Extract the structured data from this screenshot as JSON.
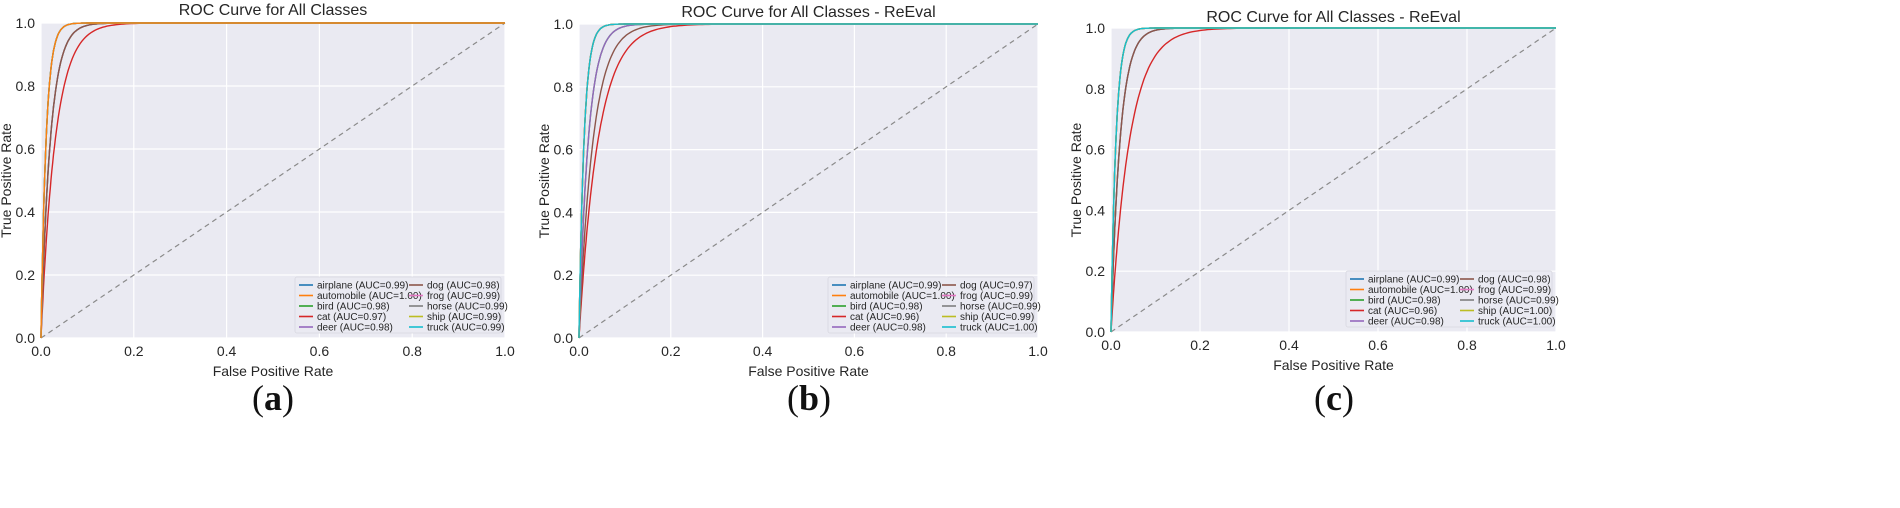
{
  "chart_data": [
    {
      "type": "line",
      "title": "ROC Curve for All Classes",
      "caption_prefix": "(",
      "caption_letter": "a",
      "caption_suffix": ")",
      "xlabel": "False Positive Rate",
      "ylabel": "True Positive Rate",
      "xlim": [
        0,
        1
      ],
      "ylim": [
        0,
        1
      ],
      "xticks": [
        "0.0",
        "0.2",
        "0.4",
        "0.6",
        "0.8",
        "1.0"
      ],
      "yticks": [
        "0.0",
        "0.2",
        "0.4",
        "0.6",
        "0.8",
        "1.0"
      ],
      "grid": true,
      "legend_position": "lower-right",
      "diagonal": true,
      "series": [
        {
          "name": "airplane",
          "label": "airplane (AUC=0.99)",
          "auc": 0.99,
          "color": "#1f77b4"
        },
        {
          "name": "automobile",
          "label": "automobile (AUC=1.00)",
          "auc": 1.0,
          "color": "#ff7f0e"
        },
        {
          "name": "bird",
          "label": "bird (AUC=0.98)",
          "auc": 0.98,
          "color": "#2ca02c"
        },
        {
          "name": "cat",
          "label": "cat (AUC=0.97)",
          "auc": 0.97,
          "color": "#d62728"
        },
        {
          "name": "deer",
          "label": "deer (AUC=0.98)",
          "auc": 0.98,
          "color": "#9467bd"
        },
        {
          "name": "dog",
          "label": "dog (AUC=0.98)",
          "auc": 0.98,
          "color": "#8c564b"
        },
        {
          "name": "frog",
          "label": "frog (AUC=0.99)",
          "auc": 0.99,
          "color": "#e377c2"
        },
        {
          "name": "horse",
          "label": "horse (AUC=0.99)",
          "auc": 0.99,
          "color": "#7f7f7f"
        },
        {
          "name": "ship",
          "label": "ship (AUC=0.99)",
          "auc": 0.99,
          "color": "#bcbd22"
        },
        {
          "name": "truck",
          "label": "truck (AUC=0.99)",
          "auc": 0.99,
          "color": "#17becf"
        }
      ]
    },
    {
      "type": "line",
      "title": "ROC Curve for All Classes - ReEval",
      "caption_prefix": "(",
      "caption_letter": "b",
      "caption_suffix": ")",
      "xlabel": "False Positive Rate",
      "ylabel": "True Positive Rate",
      "xlim": [
        0,
        1
      ],
      "ylim": [
        0,
        1
      ],
      "xticks": [
        "0.0",
        "0.2",
        "0.4",
        "0.6",
        "0.8",
        "1.0"
      ],
      "yticks": [
        "0.0",
        "0.2",
        "0.4",
        "0.6",
        "0.8",
        "1.0"
      ],
      "grid": true,
      "legend_position": "lower-right",
      "diagonal": true,
      "series": [
        {
          "name": "airplane",
          "label": "airplane (AUC=0.99)",
          "auc": 0.99,
          "color": "#1f77b4"
        },
        {
          "name": "automobile",
          "label": "automobile (AUC=1.00)",
          "auc": 1.0,
          "color": "#ff7f0e"
        },
        {
          "name": "bird",
          "label": "bird (AUC=0.98)",
          "auc": 0.98,
          "color": "#2ca02c"
        },
        {
          "name": "cat",
          "label": "cat (AUC=0.96)",
          "auc": 0.96,
          "color": "#d62728"
        },
        {
          "name": "deer",
          "label": "deer (AUC=0.98)",
          "auc": 0.98,
          "color": "#9467bd"
        },
        {
          "name": "dog",
          "label": "dog (AUC=0.97)",
          "auc": 0.97,
          "color": "#8c564b"
        },
        {
          "name": "frog",
          "label": "frog (AUC=0.99)",
          "auc": 0.99,
          "color": "#e377c2"
        },
        {
          "name": "horse",
          "label": "horse (AUC=0.99)",
          "auc": 0.99,
          "color": "#7f7f7f"
        },
        {
          "name": "ship",
          "label": "ship (AUC=0.99)",
          "auc": 0.99,
          "color": "#bcbd22"
        },
        {
          "name": "truck",
          "label": "truck (AUC=1.00)",
          "auc": 1.0,
          "color": "#17becf"
        }
      ]
    },
    {
      "type": "line",
      "title": "ROC Curve for All Classes - ReEval",
      "caption_prefix": "(",
      "caption_letter": "c",
      "caption_suffix": ")",
      "xlabel": "False Positive Rate",
      "ylabel": "True Positive Rate",
      "xlim": [
        0,
        1
      ],
      "ylim": [
        0,
        1
      ],
      "xticks": [
        "0.0",
        "0.2",
        "0.4",
        "0.6",
        "0.8",
        "1.0"
      ],
      "yticks": [
        "0.0",
        "0.2",
        "0.4",
        "0.6",
        "0.8",
        "1.0"
      ],
      "grid": true,
      "legend_position": "lower-right",
      "diagonal": true,
      "series": [
        {
          "name": "airplane",
          "label": "airplane (AUC=0.99)",
          "auc": 0.99,
          "color": "#1f77b4"
        },
        {
          "name": "automobile",
          "label": "automobile (AUC=1.00)",
          "auc": 1.0,
          "color": "#ff7f0e"
        },
        {
          "name": "bird",
          "label": "bird (AUC=0.98)",
          "auc": 0.98,
          "color": "#2ca02c"
        },
        {
          "name": "cat",
          "label": "cat (AUC=0.96)",
          "auc": 0.96,
          "color": "#d62728"
        },
        {
          "name": "deer",
          "label": "deer (AUC=0.98)",
          "auc": 0.98,
          "color": "#9467bd"
        },
        {
          "name": "dog",
          "label": "dog (AUC=0.98)",
          "auc": 0.98,
          "color": "#8c564b"
        },
        {
          "name": "frog",
          "label": "frog (AUC=0.99)",
          "auc": 0.99,
          "color": "#e377c2"
        },
        {
          "name": "horse",
          "label": "horse (AUC=0.99)",
          "auc": 0.99,
          "color": "#7f7f7f"
        },
        {
          "name": "ship",
          "label": "ship (AUC=1.00)",
          "auc": 1.0,
          "color": "#bcbd22"
        },
        {
          "name": "truck",
          "label": "truck (AUC=1.00)",
          "auc": 1.0,
          "color": "#17becf"
        }
      ]
    }
  ]
}
